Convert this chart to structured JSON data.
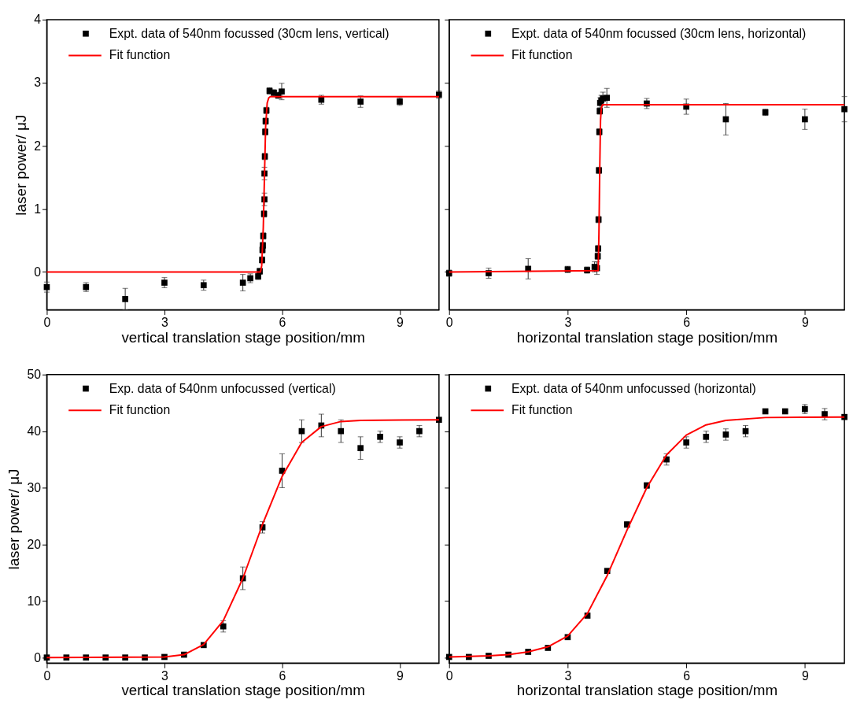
{
  "chart_data": [
    {
      "type": "scatter",
      "xlabel": "vertical translation stage position/mm",
      "ylabel": "laser power/ μJ",
      "xlim": [
        0,
        10
      ],
      "xticks": [
        0,
        3,
        6,
        9
      ],
      "ylim": [
        -0.6,
        4
      ],
      "yticks": [
        0,
        1,
        2,
        3,
        4
      ],
      "legend": "top left",
      "grid": false,
      "series": [
        {
          "name": "Expt. data of 540nm focussed (30cm lens, vertical)",
          "color": "#000000",
          "marker": "square",
          "x": [
            0,
            1,
            2,
            3,
            4,
            5,
            5.19,
            5.39,
            5.43,
            5.49,
            5.5,
            5.51,
            5.52,
            5.54,
            5.55,
            5.55,
            5.56,
            5.57,
            5.58,
            5.6,
            5.68,
            5.79,
            5.9,
            5.99,
            7,
            8,
            9,
            10
          ],
          "values": [
            -0.24,
            -0.24,
            -0.43,
            -0.17,
            -0.21,
            -0.17,
            -0.1,
            -0.07,
            0.01,
            0.19,
            0.35,
            0.42,
            0.57,
            0.92,
            1.15,
            1.56,
            1.83,
            2.22,
            2.39,
            2.56,
            2.87,
            2.84,
            2.8,
            2.86,
            2.73,
            2.7,
            2.7,
            2.81
          ],
          "errors": [
            0.08,
            0.07,
            0.17,
            0.08,
            0.08,
            0.13,
            0.07,
            0.05,
            0.05,
            0.05,
            0.05,
            0.05,
            0.05,
            0.05,
            0.1,
            0.1,
            0.05,
            0.05,
            0.05,
            0.05,
            0.05,
            0.05,
            0.05,
            0.13,
            0.07,
            0.09,
            0.06,
            0.06
          ]
        },
        {
          "name": "Fit function",
          "type": "line",
          "color": "#ff0000",
          "x": [
            0,
            5.45,
            5.48,
            5.52,
            5.55,
            5.58,
            5.62,
            5.66,
            5.7,
            10
          ],
          "values": [
            0,
            0,
            0.1,
            0.7,
            1.5,
            2.3,
            2.68,
            2.76,
            2.78,
            2.78
          ]
        }
      ]
    },
    {
      "type": "scatter",
      "xlabel": "horizontal translation stage position/mm",
      "xlim": [
        0,
        10
      ],
      "xticks": [
        0,
        3,
        6,
        9
      ],
      "ylim": [
        -0.6,
        4
      ],
      "yticks": [
        0,
        1,
        2,
        3,
        4
      ],
      "tick_labels": "x",
      "legend": "top left",
      "grid": false,
      "series": [
        {
          "name": "Expt. data of 540nm focussed (30cm lens, horizontal)",
          "color": "#000000",
          "marker": "square",
          "x": [
            0,
            1,
            2,
            3,
            3.49,
            3.68,
            3.74,
            3.76,
            3.77,
            3.78,
            3.79,
            3.8,
            3.81,
            3.82,
            3.85,
            3.89,
            3.99,
            5,
            6,
            7,
            8,
            9,
            10
          ],
          "values": [
            -0.02,
            -0.02,
            0.05,
            0.04,
            0.03,
            0.08,
            0.06,
            0.25,
            0.37,
            0.83,
            1.61,
            2.22,
            2.55,
            2.68,
            2.72,
            2.75,
            2.76,
            2.67,
            2.62,
            2.42,
            2.53,
            2.42,
            2.58
          ],
          "errors": [
            0.05,
            0.08,
            0.16,
            0.05,
            0.05,
            0.08,
            0.1,
            0.05,
            0.05,
            0.05,
            0.05,
            0.05,
            0.05,
            0.08,
            0.08,
            0.1,
            0.15,
            0.08,
            0.12,
            0.25,
            0.05,
            0.16,
            0.2
          ]
        },
        {
          "name": "Fit function",
          "type": "line",
          "color": "#ff0000",
          "x": [
            0,
            3.77,
            3.79,
            3.81,
            3.83,
            3.85,
            3.88,
            10
          ],
          "values": [
            0,
            0.02,
            0.6,
            1.6,
            2.4,
            2.6,
            2.65,
            2.65
          ]
        }
      ]
    },
    {
      "type": "scatter",
      "xlabel": "vertical translation stage position/mm",
      "ylabel": "laser power/ μJ",
      "xlim": [
        0,
        10
      ],
      "xticks": [
        0,
        3,
        6,
        9
      ],
      "ylim": [
        -1,
        50
      ],
      "yticks": [
        0,
        10,
        20,
        30,
        40,
        50
      ],
      "legend": "top left",
      "grid": false,
      "series": [
        {
          "name": "Exp. data of 540nm unfocussed (vertical)",
          "color": "#000000",
          "marker": "square",
          "x": [
            0,
            0.5,
            1,
            1.5,
            2,
            2.5,
            3,
            3.5,
            4,
            4.5,
            5,
            5.5,
            6,
            6.5,
            7,
            7.5,
            8,
            8.5,
            9,
            9.5,
            10
          ],
          "values": [
            0,
            0,
            0,
            0,
            0,
            0,
            0.1,
            0.5,
            2.2,
            5.5,
            14,
            23,
            33,
            40,
            41,
            40,
            37,
            39,
            38,
            40,
            42
          ],
          "errors": [
            null,
            null,
            null,
            null,
            null,
            null,
            null,
            null,
            0.3,
            1,
            2,
            1,
            3,
            2,
            2,
            2,
            2,
            1,
            1,
            1,
            null
          ]
        },
        {
          "name": "Fit function",
          "type": "line",
          "color": "#ff0000",
          "x": [
            0,
            3,
            3.5,
            4,
            4.5,
            5,
            5.5,
            6,
            6.5,
            7,
            7.5,
            8,
            10
          ],
          "values": [
            0,
            0.1,
            0.5,
            2.3,
            6.5,
            14,
            23.5,
            32,
            38,
            40.8,
            41.7,
            41.9,
            42
          ]
        }
      ]
    },
    {
      "type": "scatter",
      "xlabel": "horizontal translation stage position/mm",
      "xlim": [
        0,
        10
      ],
      "xticks": [
        0,
        3,
        6,
        9
      ],
      "ylim": [
        -1,
        50
      ],
      "yticks": [
        0,
        10,
        20,
        30,
        40,
        50
      ],
      "tick_labels": "x",
      "legend": "top left",
      "grid": false,
      "series": [
        {
          "name": "Expt. data of 540nm unfocussed (horizontal)",
          "color": "#000000",
          "marker": "square",
          "x": [
            0,
            0.5,
            1,
            1.5,
            2,
            2.5,
            3,
            3.5,
            4,
            4.5,
            5,
            5.5,
            6,
            6.5,
            7,
            7.5,
            8,
            8.5,
            9,
            9.5,
            10
          ],
          "values": [
            0.1,
            0.1,
            0.3,
            0.5,
            1.0,
            1.7,
            3.6,
            7.4,
            15.3,
            23.5,
            30.4,
            35,
            38,
            39,
            39.4,
            40,
            43.5,
            43.5,
            43.9,
            43,
            42.5
          ],
          "errors": [
            null,
            null,
            null,
            null,
            null,
            null,
            null,
            null,
            null,
            0.5,
            0.5,
            1,
            1,
            1,
            1,
            1,
            null,
            null,
            0.8,
            1,
            null
          ]
        },
        {
          "name": "Fit function",
          "type": "line",
          "color": "#ff0000",
          "x": [
            0,
            1,
            1.5,
            2,
            2.5,
            3,
            3.5,
            4,
            4.5,
            5,
            5.5,
            6,
            6.5,
            7,
            8,
            10
          ],
          "values": [
            0.1,
            0.3,
            0.5,
            1.0,
            1.9,
            3.8,
            7.8,
            14.5,
            22.5,
            30,
            35.8,
            39.3,
            41.1,
            41.9,
            42.4,
            42.5
          ]
        }
      ]
    }
  ]
}
